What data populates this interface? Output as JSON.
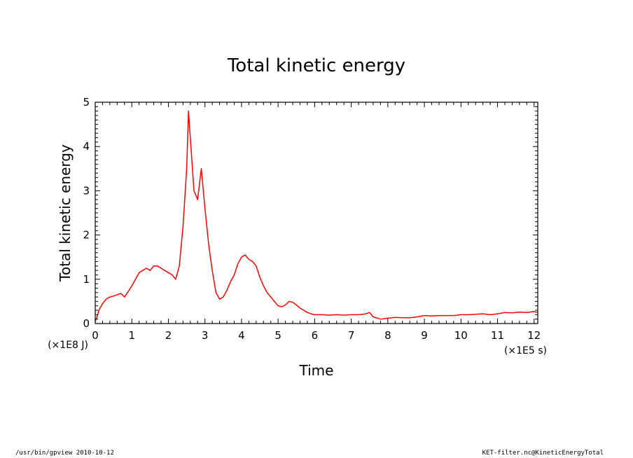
{
  "chart_data": {
    "type": "line",
    "title": "Total kinetic energy",
    "xlabel": "Time",
    "ylabel": "Total kinetic energy",
    "x_unit_label": "(×1E5 s)",
    "y_unit_label": "(×1E8 J)",
    "xlim": [
      0,
      12.1
    ],
    "ylim": [
      0,
      5
    ],
    "x_ticks": [
      "0",
      "1",
      "2",
      "3",
      "4",
      "5",
      "6",
      "7",
      "8",
      "9",
      "10",
      "11",
      "12"
    ],
    "y_ticks": [
      "0",
      "1",
      "2",
      "3",
      "4",
      "5"
    ],
    "grid": false,
    "series": [
      {
        "color": "#ff0000",
        "x": [
          0,
          0.05,
          0.1,
          0.2,
          0.3,
          0.4,
          0.5,
          0.6,
          0.7,
          0.8,
          0.9,
          1.0,
          1.1,
          1.2,
          1.3,
          1.4,
          1.5,
          1.6,
          1.7,
          1.8,
          1.9,
          2.0,
          2.1,
          2.2,
          2.3,
          2.4,
          2.5,
          2.55,
          2.6,
          2.7,
          2.8,
          2.9,
          3.0,
          3.1,
          3.2,
          3.3,
          3.4,
          3.5,
          3.6,
          3.7,
          3.8,
          3.9,
          4.0,
          4.1,
          4.2,
          4.3,
          4.4,
          4.5,
          4.6,
          4.7,
          4.8,
          4.9,
          5.0,
          5.1,
          5.2,
          5.3,
          5.4,
          5.5,
          5.6,
          5.7,
          5.8,
          5.9,
          6.0,
          6.2,
          6.4,
          6.6,
          6.8,
          7.0,
          7.2,
          7.4,
          7.5,
          7.6,
          7.8,
          8.0,
          8.2,
          8.4,
          8.6,
          8.8,
          9.0,
          9.2,
          9.4,
          9.6,
          9.8,
          10.0,
          10.2,
          10.4,
          10.6,
          10.8,
          11.0,
          11.2,
          11.4,
          11.6,
          11.8,
          12.0,
          12.1
        ],
        "y": [
          0.05,
          0.15,
          0.3,
          0.45,
          0.55,
          0.6,
          0.62,
          0.65,
          0.68,
          0.6,
          0.72,
          0.85,
          1.0,
          1.15,
          1.2,
          1.25,
          1.2,
          1.3,
          1.3,
          1.25,
          1.2,
          1.15,
          1.1,
          1.0,
          1.3,
          2.2,
          3.5,
          4.8,
          4.2,
          3.0,
          2.8,
          3.5,
          2.6,
          1.8,
          1.2,
          0.7,
          0.55,
          0.6,
          0.75,
          0.95,
          1.1,
          1.35,
          1.5,
          1.55,
          1.45,
          1.4,
          1.3,
          1.05,
          0.85,
          0.7,
          0.6,
          0.5,
          0.4,
          0.38,
          0.42,
          0.5,
          0.48,
          0.42,
          0.35,
          0.3,
          0.25,
          0.22,
          0.2,
          0.2,
          0.19,
          0.2,
          0.19,
          0.2,
          0.2,
          0.22,
          0.25,
          0.15,
          0.1,
          0.12,
          0.14,
          0.13,
          0.13,
          0.15,
          0.18,
          0.17,
          0.18,
          0.18,
          0.18,
          0.2,
          0.2,
          0.21,
          0.22,
          0.2,
          0.22,
          0.25,
          0.24,
          0.26,
          0.25,
          0.27,
          0.25
        ]
      }
    ]
  },
  "footer": {
    "left": "/usr/bin/gpview   2010-10-12",
    "right": "KET-filter.nc@KineticEnergyTotal"
  }
}
